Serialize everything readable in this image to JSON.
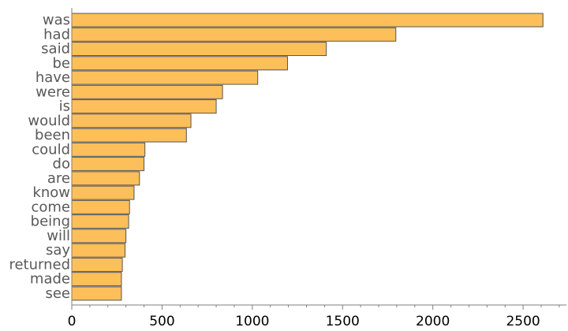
{
  "chart_data": {
    "type": "bar",
    "orientation": "horizontal",
    "categories": [
      "was",
      "had",
      "said",
      "be",
      "have",
      "were",
      "is",
      "would",
      "been",
      "could",
      "do",
      "are",
      "know",
      "come",
      "being",
      "will",
      "say",
      "returned",
      "made",
      "see"
    ],
    "values": [
      2610,
      1795,
      1410,
      1195,
      1030,
      835,
      800,
      660,
      635,
      405,
      400,
      375,
      345,
      320,
      315,
      300,
      295,
      280,
      275,
      275
    ],
    "xlim": [
      0,
      2740
    ],
    "xticks": [
      0,
      500,
      1000,
      1500,
      2000,
      2500
    ],
    "xtick_labels": [
      "0",
      "500",
      "1000",
      "1500",
      "2000",
      "2500"
    ],
    "xminor_step": 100,
    "grid": false,
    "legend": "none",
    "colors": {
      "bar_fill": "#FDBF5A",
      "bar_stroke": "#555555",
      "axis": "#7F7F7F",
      "category_label": "#595959",
      "tick_label": "#000000"
    }
  }
}
